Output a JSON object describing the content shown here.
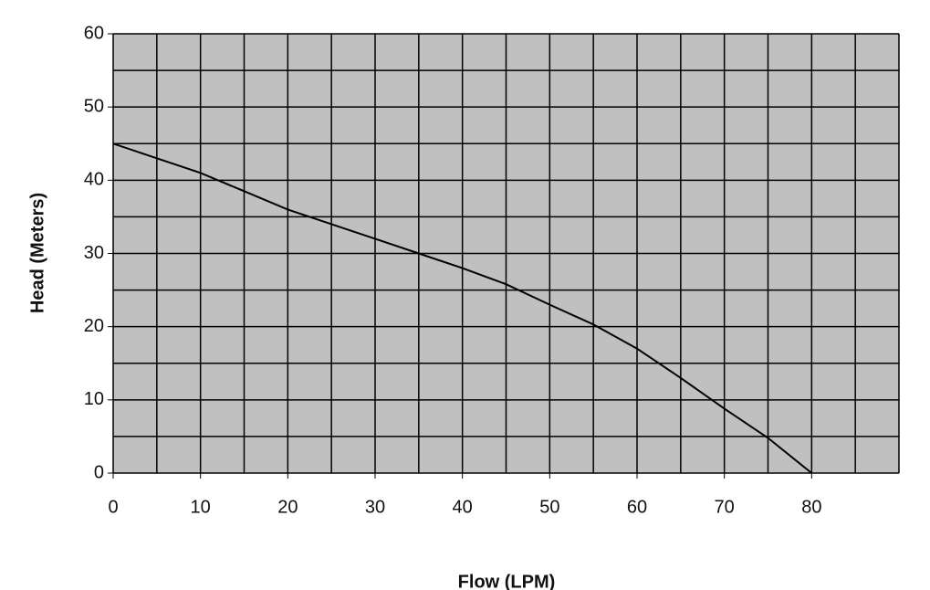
{
  "chart_data": {
    "type": "line",
    "x_label": "Flow (LPM)",
    "y_label": "Head (Meters)",
    "x": [
      0,
      5,
      10,
      15,
      20,
      25,
      30,
      35,
      40,
      45,
      50,
      55,
      60,
      65,
      70,
      75,
      80
    ],
    "values": [
      45,
      43,
      41,
      38.5,
      36,
      34,
      32,
      30,
      28,
      25.8,
      23,
      20.3,
      17,
      13,
      8.8,
      4.8,
      0
    ],
    "color": "#000000",
    "background": "#c0c0c0",
    "grid_color": "#000000",
    "xlim": [
      0,
      90
    ],
    "xticks": [
      0,
      10,
      20,
      30,
      40,
      50,
      60,
      70,
      80
    ],
    "ylim": [
      0,
      60
    ],
    "yticks": [
      0,
      10,
      20,
      30,
      40,
      50,
      60
    ],
    "xgrid": [
      0,
      5,
      10,
      15,
      20,
      25,
      30,
      35,
      40,
      45,
      50,
      55,
      60,
      65,
      70,
      75,
      80,
      85,
      90
    ],
    "ygrid": [
      0,
      5,
      10,
      15,
      20,
      25,
      30,
      35,
      40,
      45,
      50,
      55,
      60
    ],
    "grid": true
  }
}
